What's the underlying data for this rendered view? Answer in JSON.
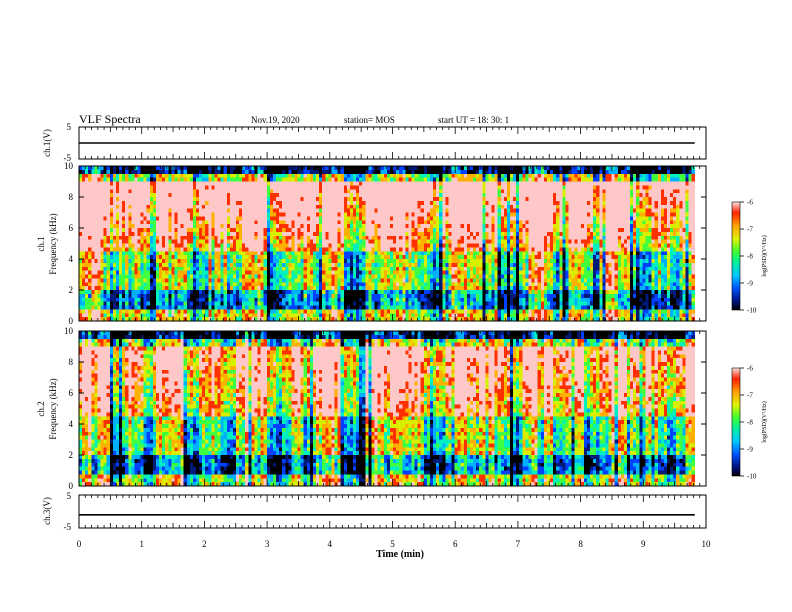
{
  "header": {
    "title": "VLF Spectra",
    "date": "Nov.19, 2020",
    "station": "station= MOS",
    "start": "start UT =   18: 30: 1"
  },
  "colors": {
    "spectrum": [
      "#000000",
      "#001a7a",
      "#0040ff",
      "#00b0ff",
      "#00f0c0",
      "#40ff40",
      "#d8f000",
      "#ffb000",
      "#ff3000",
      "#ffc8c8"
    ],
    "trace": "#000000"
  },
  "chart_data": [
    {
      "id": "ch1_waveform",
      "type": "line",
      "ylabel": "ch.1(V)",
      "ylim": [
        -5,
        5
      ],
      "y_ticks": [
        "5",
        "-5"
      ],
      "x_range": [
        0,
        10
      ],
      "series": [
        {
          "x": [
            0,
            9.82
          ],
          "values": [
            0,
            0
          ]
        }
      ]
    },
    {
      "id": "ch1_spectrogram",
      "type": "heatmap",
      "ylabel": "ch.1\nFrequency (kHz)",
      "ylim": [
        0,
        10
      ],
      "y_ticks": [
        "0",
        "2",
        "4",
        "6",
        "8",
        "10"
      ],
      "x_range": [
        0,
        10
      ],
      "data_extent_min": 9.82,
      "colorbar": {
        "title": "log(PSD)(V²/Hz)",
        "range": [
          -10,
          -6
        ],
        "ticks": [
          "-6",
          "-7",
          "-8",
          "-9",
          "-10"
        ]
      }
    },
    {
      "id": "ch2_spectrogram",
      "type": "heatmap",
      "ylabel": "ch.2\nFrequency (kHz)",
      "ylim": [
        0,
        10
      ],
      "y_ticks": [
        "0",
        "2",
        "4",
        "6",
        "8",
        "10"
      ],
      "x_range": [
        0,
        10
      ],
      "data_extent_min": 9.82,
      "colorbar": {
        "title": "log(PSD)(V²/Hz)",
        "range": [
          -10,
          -6
        ],
        "ticks": [
          "-6",
          "-7",
          "-8",
          "-9",
          "-10"
        ]
      }
    },
    {
      "id": "ch3_waveform",
      "type": "line",
      "ylabel": "ch.3(V)",
      "ylim": [
        -5,
        5
      ],
      "y_ticks": [
        "5",
        "-5"
      ],
      "x_range": [
        0,
        10
      ],
      "series": [
        {
          "x": [
            0,
            9.82
          ],
          "values": [
            -1,
            -1
          ]
        }
      ]
    }
  ],
  "x_axis": {
    "label": "Time (min)",
    "ticks": [
      "0",
      "1",
      "2",
      "3",
      "4",
      "5",
      "6",
      "7",
      "8",
      "9",
      "10"
    ]
  }
}
